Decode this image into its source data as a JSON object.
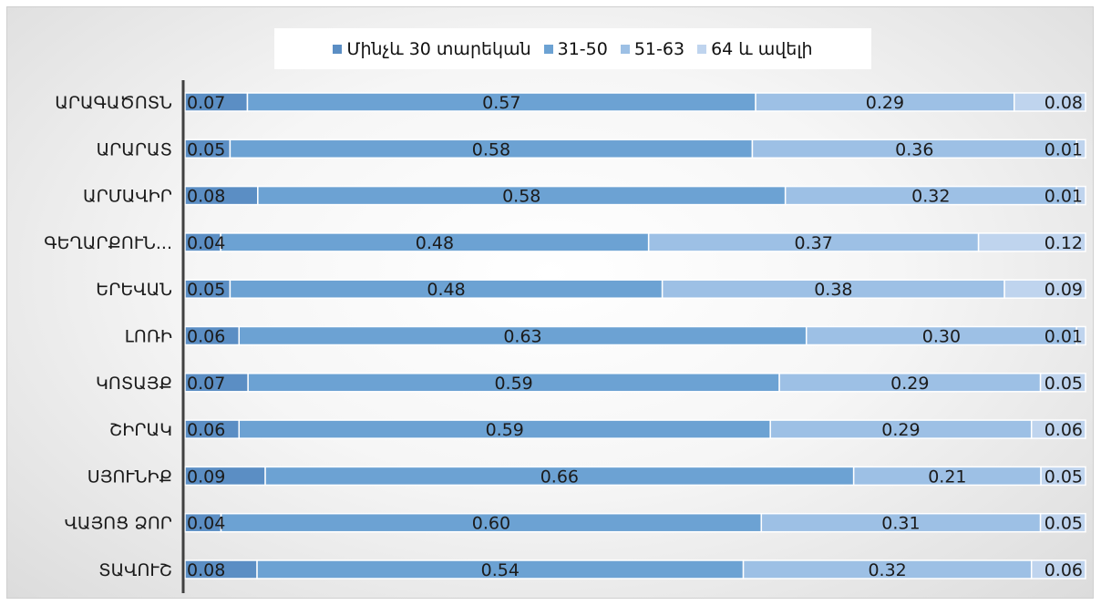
{
  "chart_data": {
    "type": "bar",
    "orientation": "horizontal",
    "stacked": true,
    "categories": [
      "ԱՐԱԳԱԾՈՏՆ",
      "ԱՐԱՐԱՏ",
      "ԱՐՄԱՎԻՐ",
      "ԳԵՂԱՐՔՈՒՆ...",
      "ԵՐԵՎԱՆ",
      "ԼՈՌԻ",
      "ԿՈՏԱՅՔ",
      "ՇԻՐԱԿ",
      "ՍՅՈՒՆԻՔ",
      "ՎԱՅՈՑ ՁՈՐ",
      "ՏԱՎՈՒՇ"
    ],
    "series": [
      {
        "name": "Մինչև 30 տարեկան",
        "color": "#5b8ec4",
        "values": [
          0.07,
          0.05,
          0.08,
          0.04,
          0.05,
          0.06,
          0.07,
          0.06,
          0.09,
          0.04,
          0.08
        ]
      },
      {
        "name": "31-50",
        "color": "#6ca2d3",
        "values": [
          0.57,
          0.58,
          0.58,
          0.48,
          0.48,
          0.63,
          0.59,
          0.59,
          0.66,
          0.6,
          0.54
        ]
      },
      {
        "name": "51-63",
        "color": "#9dc0e5",
        "values": [
          0.29,
          0.36,
          0.32,
          0.37,
          0.38,
          0.3,
          0.29,
          0.29,
          0.21,
          0.31,
          0.32
        ]
      },
      {
        "name": "64 և ավելի",
        "color": "#bfd4ee",
        "values": [
          0.08,
          0.01,
          0.01,
          0.12,
          0.09,
          0.01,
          0.05,
          0.06,
          0.05,
          0.05,
          0.06
        ]
      }
    ],
    "data_labels": [
      [
        "0.07",
        "0.57",
        "0.29",
        "0.08"
      ],
      [
        "0.05",
        "0.58",
        "0.36",
        "0.01"
      ],
      [
        "0.08",
        "0.58",
        "0.32",
        "0.01"
      ],
      [
        "0.04",
        "0.48",
        "0.37",
        "0.12"
      ],
      [
        "0.05",
        "0.48",
        "0.38",
        "0.09"
      ],
      [
        "0.06",
        "0.63",
        "0.30",
        "0.01"
      ],
      [
        "0.07",
        "0.59",
        "0.29",
        "0.05"
      ],
      [
        "0.06",
        "0.59",
        "0.29",
        "0.06"
      ],
      [
        "0.09",
        "0.66",
        "0.21",
        "0.05"
      ],
      [
        "0.04",
        "0.60",
        "0.31",
        "0.05"
      ],
      [
        "0.08",
        "0.54",
        "0.32",
        "0.06"
      ]
    ],
    "xlim": [
      0,
      1
    ],
    "grid": false,
    "legend_position": "top"
  }
}
